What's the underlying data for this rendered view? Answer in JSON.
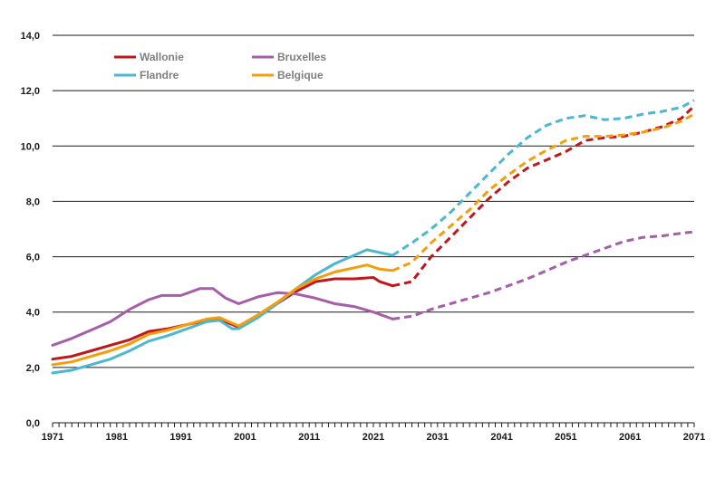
{
  "chart_data": {
    "type": "line",
    "title": "",
    "xlabel": "",
    "ylabel": "",
    "xlim": [
      1971,
      2071
    ],
    "ylim": [
      0,
      14
    ],
    "grid": true,
    "legend_position": "top-left",
    "x_ticks": [
      "1971",
      "1981",
      "1991",
      "2001",
      "2011",
      "2021",
      "2031",
      "2041",
      "2051",
      "2061",
      "2071"
    ],
    "y_ticks": [
      "0,0",
      "2,0",
      "4,0",
      "6,0",
      "8,0",
      "10,0",
      "12,0",
      "14,0"
    ],
    "series": [
      {
        "name": "Wallonie",
        "color": "#c0171c",
        "observed": [
          [
            1971,
            2.3
          ],
          [
            1974,
            2.4
          ],
          [
            1977,
            2.6
          ],
          [
            1980,
            2.8
          ],
          [
            1983,
            3.0
          ],
          [
            1986,
            3.3
          ],
          [
            1989,
            3.4
          ],
          [
            1992,
            3.55
          ],
          [
            1995,
            3.7
          ],
          [
            1997,
            3.75
          ],
          [
            2000,
            3.45
          ],
          [
            2003,
            3.85
          ],
          [
            2006,
            4.3
          ],
          [
            2009,
            4.75
          ],
          [
            2012,
            5.1
          ],
          [
            2015,
            5.2
          ],
          [
            2018,
            5.2
          ],
          [
            2021,
            5.25
          ],
          [
            2022,
            5.1
          ],
          [
            2024,
            4.95
          ]
        ],
        "projected": [
          [
            2024,
            4.95
          ],
          [
            2027,
            5.1
          ],
          [
            2030,
            6.0
          ],
          [
            2033,
            6.7
          ],
          [
            2036,
            7.4
          ],
          [
            2039,
            8.1
          ],
          [
            2042,
            8.7
          ],
          [
            2045,
            9.2
          ],
          [
            2048,
            9.5
          ],
          [
            2051,
            9.8
          ],
          [
            2054,
            10.2
          ],
          [
            2057,
            10.3
          ],
          [
            2060,
            10.35
          ],
          [
            2063,
            10.5
          ],
          [
            2066,
            10.7
          ],
          [
            2069,
            11.0
          ],
          [
            2071,
            11.45
          ]
        ]
      },
      {
        "name": "Bruxelles",
        "color": "#a55ea8",
        "observed": [
          [
            1971,
            2.8
          ],
          [
            1974,
            3.05
          ],
          [
            1977,
            3.35
          ],
          [
            1980,
            3.65
          ],
          [
            1983,
            4.1
          ],
          [
            1986,
            4.45
          ],
          [
            1988,
            4.6
          ],
          [
            1991,
            4.6
          ],
          [
            1994,
            4.85
          ],
          [
            1996,
            4.85
          ],
          [
            1998,
            4.5
          ],
          [
            2000,
            4.3
          ],
          [
            2003,
            4.55
          ],
          [
            2006,
            4.7
          ],
          [
            2009,
            4.65
          ],
          [
            2012,
            4.5
          ],
          [
            2015,
            4.3
          ],
          [
            2018,
            4.2
          ],
          [
            2021,
            4.0
          ],
          [
            2024,
            3.75
          ]
        ],
        "projected": [
          [
            2024,
            3.75
          ],
          [
            2027,
            3.85
          ],
          [
            2030,
            4.1
          ],
          [
            2033,
            4.3
          ],
          [
            2036,
            4.5
          ],
          [
            2039,
            4.7
          ],
          [
            2042,
            4.95
          ],
          [
            2045,
            5.2
          ],
          [
            2048,
            5.5
          ],
          [
            2051,
            5.8
          ],
          [
            2054,
            6.05
          ],
          [
            2057,
            6.3
          ],
          [
            2060,
            6.55
          ],
          [
            2063,
            6.7
          ],
          [
            2066,
            6.75
          ],
          [
            2069,
            6.85
          ],
          [
            2071,
            6.9
          ]
        ]
      },
      {
        "name": "Flandre",
        "color": "#4bb7d0",
        "observed": [
          [
            1971,
            1.8
          ],
          [
            1974,
            1.9
          ],
          [
            1977,
            2.1
          ],
          [
            1980,
            2.3
          ],
          [
            1983,
            2.6
          ],
          [
            1986,
            2.95
          ],
          [
            1989,
            3.15
          ],
          [
            1992,
            3.4
          ],
          [
            1995,
            3.65
          ],
          [
            1997,
            3.7
          ],
          [
            1999,
            3.4
          ],
          [
            2000,
            3.4
          ],
          [
            2003,
            3.8
          ],
          [
            2006,
            4.3
          ],
          [
            2009,
            4.85
          ],
          [
            2012,
            5.35
          ],
          [
            2015,
            5.75
          ],
          [
            2018,
            6.05
          ],
          [
            2020,
            6.25
          ],
          [
            2022,
            6.15
          ],
          [
            2024,
            6.05
          ]
        ],
        "projected": [
          [
            2024,
            6.05
          ],
          [
            2027,
            6.5
          ],
          [
            2030,
            7.0
          ],
          [
            2033,
            7.6
          ],
          [
            2036,
            8.3
          ],
          [
            2039,
            9.0
          ],
          [
            2042,
            9.7
          ],
          [
            2045,
            10.3
          ],
          [
            2048,
            10.75
          ],
          [
            2051,
            11.0
          ],
          [
            2054,
            11.1
          ],
          [
            2057,
            10.95
          ],
          [
            2060,
            11.0
          ],
          [
            2063,
            11.15
          ],
          [
            2066,
            11.25
          ],
          [
            2069,
            11.4
          ],
          [
            2071,
            11.65
          ]
        ]
      },
      {
        "name": "Belgique",
        "color": "#f59e0b",
        "observed": [
          [
            1971,
            2.1
          ],
          [
            1974,
            2.2
          ],
          [
            1977,
            2.4
          ],
          [
            1980,
            2.6
          ],
          [
            1983,
            2.85
          ],
          [
            1986,
            3.2
          ],
          [
            1989,
            3.35
          ],
          [
            1992,
            3.55
          ],
          [
            1995,
            3.75
          ],
          [
            1997,
            3.8
          ],
          [
            2000,
            3.5
          ],
          [
            2003,
            3.9
          ],
          [
            2006,
            4.35
          ],
          [
            2009,
            4.85
          ],
          [
            2012,
            5.2
          ],
          [
            2015,
            5.45
          ],
          [
            2018,
            5.6
          ],
          [
            2020,
            5.7
          ],
          [
            2022,
            5.55
          ],
          [
            2024,
            5.5
          ]
        ],
        "projected": [
          [
            2024,
            5.5
          ],
          [
            2027,
            5.8
          ],
          [
            2030,
            6.5
          ],
          [
            2033,
            7.1
          ],
          [
            2036,
            7.7
          ],
          [
            2039,
            8.4
          ],
          [
            2042,
            8.95
          ],
          [
            2045,
            9.45
          ],
          [
            2048,
            9.85
          ],
          [
            2051,
            10.2
          ],
          [
            2054,
            10.35
          ],
          [
            2057,
            10.35
          ],
          [
            2060,
            10.4
          ],
          [
            2063,
            10.5
          ],
          [
            2066,
            10.65
          ],
          [
            2069,
            10.9
          ],
          [
            2071,
            11.15
          ]
        ]
      }
    ]
  }
}
